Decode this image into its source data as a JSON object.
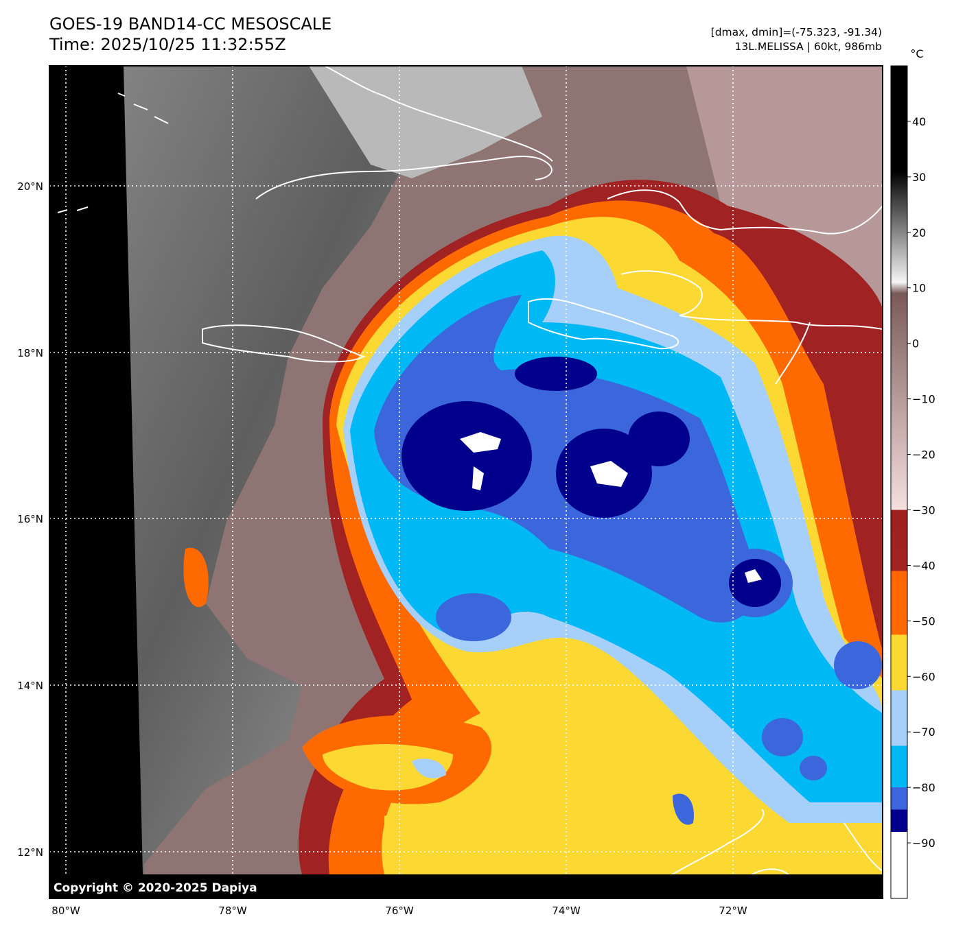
{
  "header": {
    "title_line1": "GOES-19 BAND14-CC MESOSCALE",
    "title_line2": "Time: 2025/10/25 11:32:55Z",
    "range_text": "[dmax, dmin]=(-75.323, -91.34)",
    "storm_text": "13L.MELISSA | 60kt, 986mb"
  },
  "map": {
    "lat_labels": [
      "20°N",
      "18°N",
      "16°N",
      "14°N",
      "12°N"
    ],
    "lon_labels": [
      "80°W",
      "78°W",
      "76°W",
      "74°W",
      "72°W"
    ],
    "copyright": "Copyright © 2020-2025 Dapiya",
    "storm_center_label": ""
  },
  "colorbar": {
    "unit": "°C",
    "tick_labels": [
      "40",
      "30",
      "20",
      "10",
      "0",
      "−10",
      "−20",
      "−30",
      "−40",
      "−50",
      "−60",
      "−70",
      "−80",
      "−90"
    ],
    "tick_values": [
      40,
      30,
      20,
      10,
      0,
      -10,
      -20,
      -30,
      -40,
      -50,
      -60,
      -70,
      -80,
      -90
    ],
    "range": [
      -100,
      50
    ],
    "stops": [
      {
        "value": 50,
        "color": "#000000"
      },
      {
        "value": 31,
        "color": "#000000"
      },
      {
        "value": 11,
        "color": "#f5f5f5"
      },
      {
        "value": 9,
        "color": "#7a5a58"
      },
      {
        "value": -30,
        "color": "#f5e0e0"
      },
      {
        "value": -30,
        "color": "#9e2020"
      },
      {
        "value": -41,
        "color": "#a02222"
      },
      {
        "value": -41,
        "color": "#ff6600"
      },
      {
        "value": -52.5,
        "color": "#ff6a00"
      },
      {
        "value": -52.5,
        "color": "#fcd932"
      },
      {
        "value": -62.5,
        "color": "#fcd932"
      },
      {
        "value": -62.5,
        "color": "#a6d0fa"
      },
      {
        "value": -72.5,
        "color": "#a6d0fa"
      },
      {
        "value": -72.5,
        "color": "#00b8f4"
      },
      {
        "value": -80,
        "color": "#00b8f4"
      },
      {
        "value": -80,
        "color": "#3c66dc"
      },
      {
        "value": -84,
        "color": "#3c66dc"
      },
      {
        "value": -84,
        "color": "#00008c"
      },
      {
        "value": -88,
        "color": "#00008c"
      },
      {
        "value": -88,
        "color": "#ffffff"
      },
      {
        "value": -100,
        "color": "#ffffff"
      }
    ]
  },
  "colors": {
    "land_bg": "#8a6e6e",
    "gray_clouds": "#7a7a7a",
    "dark_red": "#a02222",
    "orange": "#ff6a00",
    "yellow": "#fcd932",
    "light_blue": "#a6d0fa",
    "cyan": "#00b8f4",
    "blue": "#3c66dc",
    "navy": "#00008c",
    "white": "#ffffff"
  }
}
